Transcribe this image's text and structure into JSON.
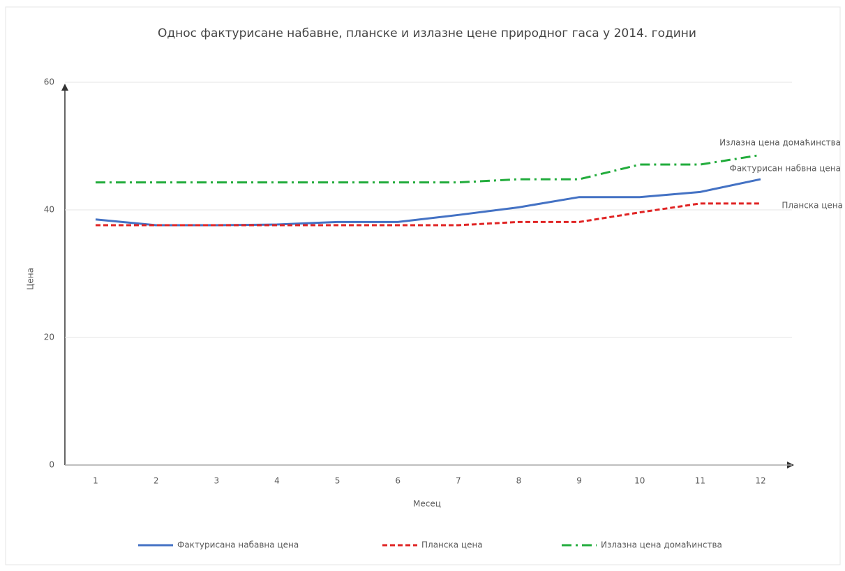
{
  "chart_data": {
    "type": "line",
    "title": "Однос фактурисане набавне, планске и излазне цене природног гаса у 2014. години",
    "x_label": "Месец",
    "y_label": "Цена",
    "categories": [
      1,
      2,
      3,
      4,
      5,
      6,
      7,
      8,
      9,
      10,
      11,
      12
    ],
    "series": [
      {
        "name": "Фактурисана набавна цена",
        "color": "#4472c4",
        "style": "solid",
        "values": [
          38.5,
          37.6,
          37.6,
          37.7,
          38.1,
          38.1,
          39.2,
          40.4,
          42,
          42,
          42.8,
          44.8
        ]
      },
      {
        "name": "Планска цена",
        "color": "#e02424",
        "style": "dashed",
        "values": [
          37.6,
          37.6,
          37.6,
          37.6,
          37.6,
          37.6,
          37.6,
          38.1,
          38.1,
          39.6,
          41,
          41
        ]
      },
      {
        "name": "Излазна цена домаћинства",
        "color": "#22ac3c",
        "style": "dashdot",
        "values": [
          44.3,
          44.3,
          44.3,
          44.3,
          44.3,
          44.3,
          44.3,
          44.8,
          44.8,
          47.1,
          47.1,
          48.6
        ]
      }
    ],
    "annotations": [
      "Излазна цена домаћинства",
      "Фактурисан набвна цена",
      "Планска цена"
    ],
    "ylim": [
      0,
      60
    ],
    "yticks": [
      0,
      20,
      40,
      60
    ],
    "grid": true,
    "legend": "bottom"
  }
}
